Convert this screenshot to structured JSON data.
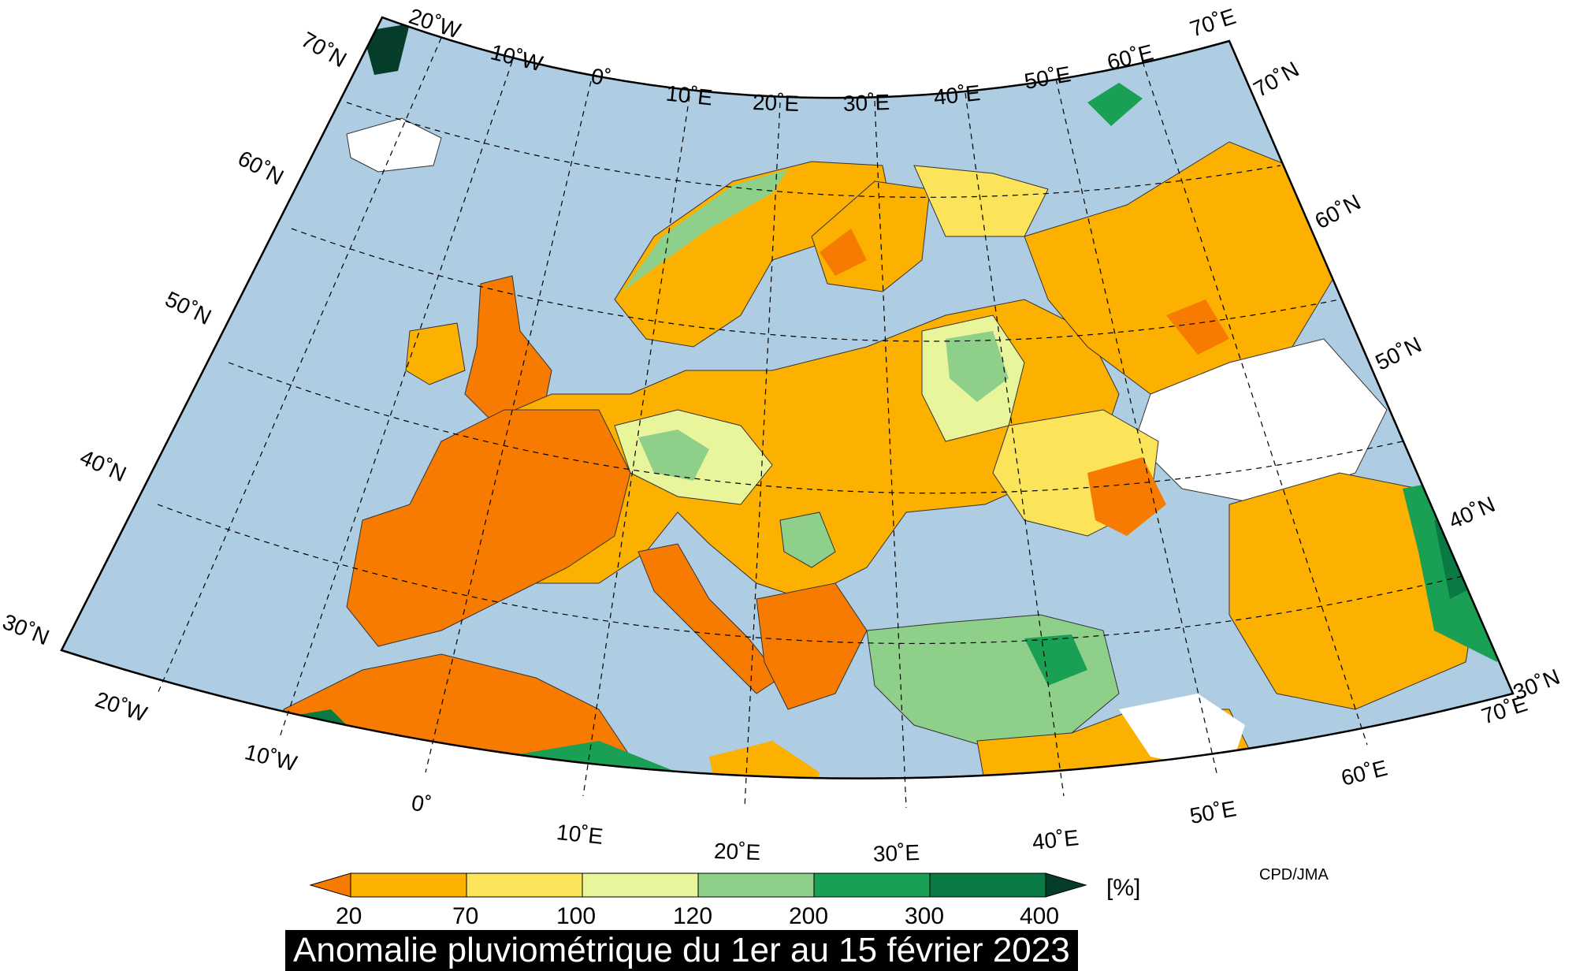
{
  "title": "Anomalie pluviométrique du 1er au 15 février 2023",
  "credit": "CPD/JMA",
  "legend": {
    "unit": "[%]",
    "ticks": [
      "20",
      "70",
      "100",
      "120",
      "200",
      "300",
      "400"
    ],
    "classes": [
      {
        "range": "< 20",
        "color": "#f77b00"
      },
      {
        "range": "20-70",
        "color": "#fcb000"
      },
      {
        "range": "70-100",
        "color": "#fce45a"
      },
      {
        "range": "100-120",
        "color": "#e8f59b"
      },
      {
        "range": "120-200",
        "color": "#8ed08a"
      },
      {
        "range": "200-300",
        "color": "#1aa055"
      },
      {
        "range": "300-400",
        "color": "#0a7a45"
      },
      {
        "range": "> 400",
        "color": "#063d2a"
      }
    ]
  },
  "colors": {
    "sea": "#aecde2",
    "no_data": "#ffffff"
  },
  "axes": {
    "longitude_labels_top": [
      "20˚W",
      "10˚W",
      "0˚",
      "10˚E",
      "20˚E",
      "30˚E",
      "40˚E",
      "50˚E",
      "60˚E",
      "70˚E"
    ],
    "longitude_labels_bottom": [
      "20˚W",
      "10˚W",
      "0˚",
      "10˚E",
      "20˚E",
      "30˚E",
      "40˚E",
      "50˚E",
      "60˚E",
      "70˚E"
    ],
    "latitude_labels_left": [
      "70˚N",
      "60˚N",
      "50˚N",
      "40˚N",
      "30˚N"
    ],
    "latitude_labels_right": [
      "70˚N",
      "60˚N",
      "50˚N",
      "40˚N",
      "30˚N"
    ]
  }
}
